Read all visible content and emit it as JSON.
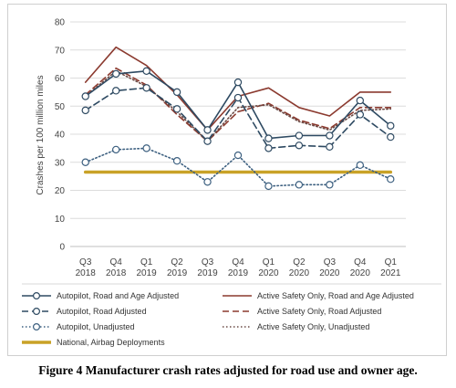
{
  "caption": "Figure 4 Manufacturer crash rates adjusted for road use and owner age.",
  "chart_data": {
    "type": "line",
    "title": "",
    "xlabel": "",
    "ylabel": "Crashes per 100 million miles",
    "ylim": [
      0,
      80
    ],
    "yticks": [
      0,
      10,
      20,
      30,
      40,
      50,
      60,
      70,
      80
    ],
    "categories": [
      [
        "Q3",
        "2018"
      ],
      [
        "Q4",
        "2018"
      ],
      [
        "Q1",
        "2019"
      ],
      [
        "Q2",
        "2019"
      ],
      [
        "Q3",
        "2019"
      ],
      [
        "Q4",
        "2019"
      ],
      [
        "Q1",
        "2020"
      ],
      [
        "Q2",
        "2020"
      ],
      [
        "Q3",
        "2020"
      ],
      [
        "Q4",
        "2020"
      ],
      [
        "Q1",
        "2021"
      ]
    ],
    "grid": "horizontal",
    "legend_position": "bottom",
    "series": [
      {
        "name": "Autopilot, Road and Age Adjusted",
        "color": "#2e4a62",
        "dash": "solid",
        "marker": "circle",
        "values": [
          53.5,
          61.5,
          62.5,
          55,
          41.5,
          58.5,
          38.5,
          39.5,
          39.5,
          52,
          43
        ]
      },
      {
        "name": "Active Safety Only, Road and Age Adjusted",
        "color": "#8b3a2f",
        "dash": "solid",
        "marker": "none",
        "values": [
          58.5,
          71,
          64.5,
          54,
          41.5,
          53.5,
          56.5,
          49.5,
          46.5,
          55,
          55
        ]
      },
      {
        "name": "Autopilot, Road Adjusted",
        "color": "#2e4a62",
        "dash": "dashed",
        "marker": "circle",
        "values": [
          48.5,
          55.5,
          56.5,
          49,
          37.5,
          53,
          35,
          36,
          35.5,
          47,
          39
        ]
      },
      {
        "name": "Active Safety Only, Road Adjusted",
        "color": "#8b3a2f",
        "dash": "dashed",
        "marker": "none",
        "values": [
          54,
          63.5,
          57.5,
          47,
          37.5,
          48,
          51,
          45,
          42,
          49.5,
          49.5
        ]
      },
      {
        "name": "Autopilot, Unadjusted",
        "color": "#3d6080",
        "dash": "dotted",
        "marker": "circle",
        "values": [
          30,
          34.5,
          35,
          30.5,
          23,
          32.5,
          21.5,
          22,
          22,
          29,
          24
        ]
      },
      {
        "name": "Active Safety Only, Unadjusted",
        "color": "#6b4a45",
        "dash": "dotted",
        "marker": "none",
        "values": [
          53.5,
          62.5,
          57,
          48,
          37.5,
          49.5,
          50.5,
          44.5,
          41.5,
          48.5,
          49
        ]
      },
      {
        "name": "National, Airbag Deployments",
        "color": "#c9a227",
        "dash": "thick",
        "marker": "none",
        "values": [
          26.5,
          26.5,
          26.5,
          26.5,
          26.5,
          26.5,
          26.5,
          26.5,
          26.5,
          26.5,
          26.5
        ]
      }
    ]
  }
}
